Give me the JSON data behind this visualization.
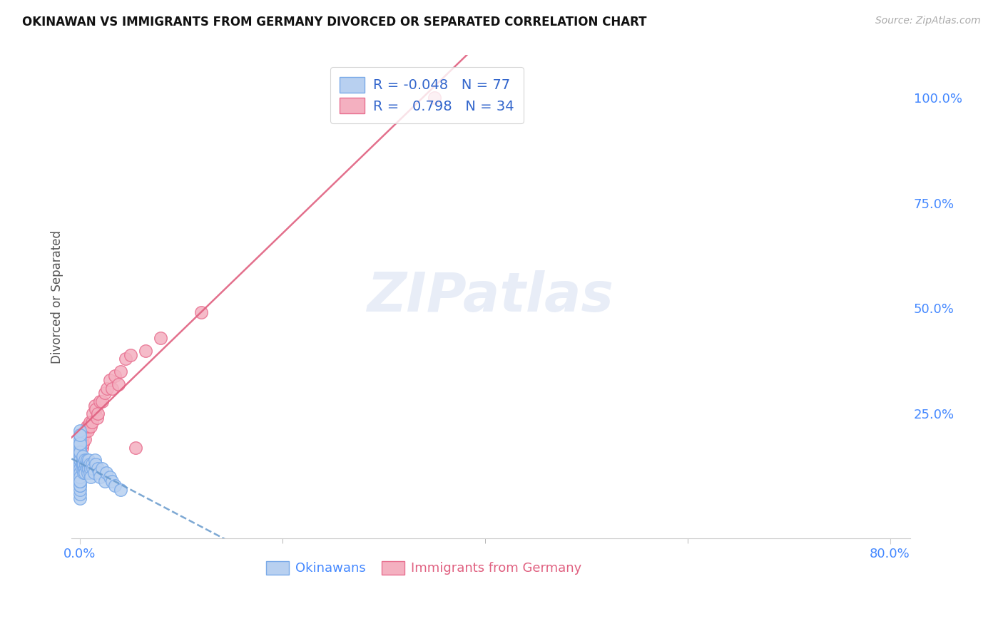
{
  "title": "OKINAWAN VS IMMIGRANTS FROM GERMANY DIVORCED OR SEPARATED CORRELATION CHART",
  "source": "Source: ZipAtlas.com",
  "ylabel": "Divorced or Separated",
  "background_color": "#ffffff",
  "grid_color": "#dddddd",
  "okinawan_fill": "#b8d0f0",
  "okinawan_edge": "#7aaae8",
  "germany_fill": "#f4b0c0",
  "germany_edge": "#e87090",
  "regression_okinawan_color": "#6699cc",
  "regression_germany_color": "#e06080",
  "legend_R_okinawan": "-0.048",
  "legend_N_okinawan": "77",
  "legend_R_germany": "0.798",
  "legend_N_germany": "34",
  "watermark": "ZIPatlas",
  "xlim": [
    -0.008,
    0.82
  ],
  "ylim": [
    -0.045,
    1.1
  ],
  "okinawan_x": [
    0.0,
    0.0,
    0.0,
    0.0,
    0.0,
    0.0,
    0.0,
    0.0,
    0.0,
    0.0,
    0.0,
    0.0,
    0.0,
    0.0,
    0.0,
    0.0,
    0.0,
    0.0,
    0.0,
    0.0,
    0.0,
    0.0,
    0.0,
    0.0,
    0.0,
    0.0,
    0.0,
    0.0,
    0.0,
    0.0,
    0.0,
    0.0,
    0.0,
    0.0,
    0.0,
    0.0,
    0.0,
    0.0,
    0.0,
    0.0,
    0.002,
    0.002,
    0.003,
    0.003,
    0.003,
    0.004,
    0.004,
    0.004,
    0.005,
    0.005,
    0.005,
    0.006,
    0.007,
    0.007,
    0.008,
    0.008,
    0.009,
    0.009,
    0.01,
    0.01,
    0.011,
    0.011,
    0.012,
    0.013,
    0.014,
    0.015,
    0.016,
    0.018,
    0.019,
    0.02,
    0.022,
    0.025,
    0.026,
    0.03,
    0.032,
    0.035,
    0.04
  ],
  "okinawan_y": [
    0.05,
    0.06,
    0.07,
    0.08,
    0.09,
    0.1,
    0.11,
    0.12,
    0.13,
    0.14,
    0.15,
    0.16,
    0.17,
    0.18,
    0.19,
    0.2,
    0.21,
    0.08,
    0.09,
    0.1,
    0.11,
    0.12,
    0.13,
    0.14,
    0.15,
    0.16,
    0.17,
    0.18,
    0.14,
    0.15,
    0.16,
    0.13,
    0.12,
    0.11,
    0.1,
    0.09,
    0.14,
    0.16,
    0.18,
    0.2,
    0.13,
    0.12,
    0.14,
    0.13,
    0.15,
    0.12,
    0.11,
    0.13,
    0.14,
    0.12,
    0.11,
    0.13,
    0.14,
    0.12,
    0.13,
    0.11,
    0.14,
    0.12,
    0.13,
    0.11,
    0.12,
    0.1,
    0.13,
    0.12,
    0.11,
    0.14,
    0.13,
    0.12,
    0.11,
    0.1,
    0.12,
    0.09,
    0.11,
    0.1,
    0.09,
    0.08,
    0.07
  ],
  "germany_x": [
    0.0,
    0.002,
    0.003,
    0.004,
    0.005,
    0.005,
    0.006,
    0.007,
    0.008,
    0.009,
    0.01,
    0.011,
    0.012,
    0.013,
    0.015,
    0.016,
    0.017,
    0.018,
    0.02,
    0.022,
    0.025,
    0.027,
    0.03,
    0.032,
    0.035,
    0.038,
    0.04,
    0.045,
    0.05,
    0.055,
    0.065,
    0.08,
    0.12,
    0.35
  ],
  "germany_y": [
    0.16,
    0.17,
    0.18,
    0.2,
    0.21,
    0.19,
    0.21,
    0.22,
    0.21,
    0.22,
    0.23,
    0.22,
    0.23,
    0.25,
    0.27,
    0.26,
    0.24,
    0.25,
    0.28,
    0.28,
    0.3,
    0.31,
    0.33,
    0.31,
    0.34,
    0.32,
    0.35,
    0.38,
    0.39,
    0.17,
    0.4,
    0.43,
    0.49,
    1.0
  ]
}
